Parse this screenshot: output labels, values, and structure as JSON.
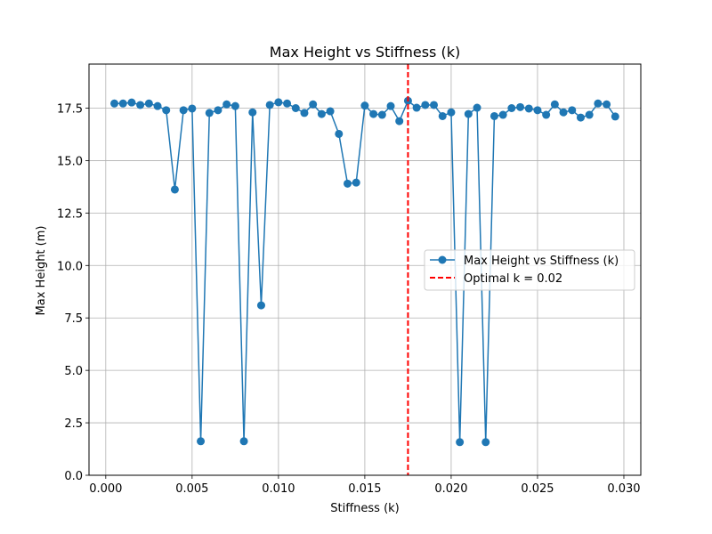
{
  "chart_data": {
    "type": "line",
    "title": "Max Height vs Stiffness (k)",
    "xlabel": "Stiffness (k)",
    "ylabel": "Max Height (m)",
    "xlim": [
      -0.00097,
      0.03098
    ],
    "ylim": [
      0,
      19.6
    ],
    "xticks": [
      0.0,
      0.005,
      0.01,
      0.015,
      0.02,
      0.025,
      0.03
    ],
    "xtick_labels": [
      "0.000",
      "0.005",
      "0.010",
      "0.015",
      "0.020",
      "0.025",
      "0.030"
    ],
    "yticks": [
      0,
      2.5,
      5,
      7.5,
      10,
      12.5,
      15,
      17.5
    ],
    "ytick_labels": [
      "0.0",
      "2.5",
      "5.0",
      "7.5",
      "10.0",
      "12.5",
      "15.0",
      "17.5"
    ],
    "grid": true,
    "legend_position": "center-right",
    "series": [
      {
        "name": "Max Height vs Stiffness (k)",
        "color": "#1f77b4",
        "marker": "circle",
        "x": [
          0.0005,
          0.001,
          0.0015,
          0.002,
          0.0025,
          0.003,
          0.0035,
          0.004,
          0.0045,
          0.005,
          0.0055,
          0.006,
          0.0065,
          0.007,
          0.0075,
          0.008,
          0.0085,
          0.009,
          0.0095,
          0.01,
          0.0105,
          0.011,
          0.0115,
          0.012,
          0.0125,
          0.013,
          0.0135,
          0.014,
          0.0145,
          0.015,
          0.0155,
          0.016,
          0.0165,
          0.017,
          0.0175,
          0.018,
          0.0185,
          0.019,
          0.0195,
          0.02,
          0.0205,
          0.021,
          0.0215,
          0.022,
          0.0225,
          0.023,
          0.0235,
          0.024,
          0.0245,
          0.025,
          0.0255,
          0.026,
          0.0265,
          0.027,
          0.0275,
          0.028,
          0.0285,
          0.029,
          0.0295
        ],
        "y": [
          17.72,
          17.72,
          17.77,
          17.65,
          17.72,
          17.6,
          17.4,
          13.62,
          17.4,
          17.48,
          1.62,
          17.27,
          17.4,
          17.68,
          17.6,
          1.62,
          17.3,
          8.1,
          17.65,
          17.78,
          17.72,
          17.5,
          17.27,
          17.68,
          17.22,
          17.35,
          16.27,
          13.9,
          13.95,
          17.62,
          17.22,
          17.18,
          17.6,
          16.88,
          17.85,
          17.52,
          17.65,
          17.65,
          17.12,
          17.3,
          1.58,
          17.22,
          17.52,
          1.58,
          17.12,
          17.18,
          17.5,
          17.55,
          17.48,
          17.4,
          17.18,
          17.68,
          17.3,
          17.4,
          17.05,
          17.18,
          17.72,
          17.68,
          17.1
        ]
      }
    ],
    "reference_line": {
      "name": "Optimal k = 0.02",
      "x": 0.0175,
      "color": "#ff0000",
      "style": "dashed"
    }
  }
}
